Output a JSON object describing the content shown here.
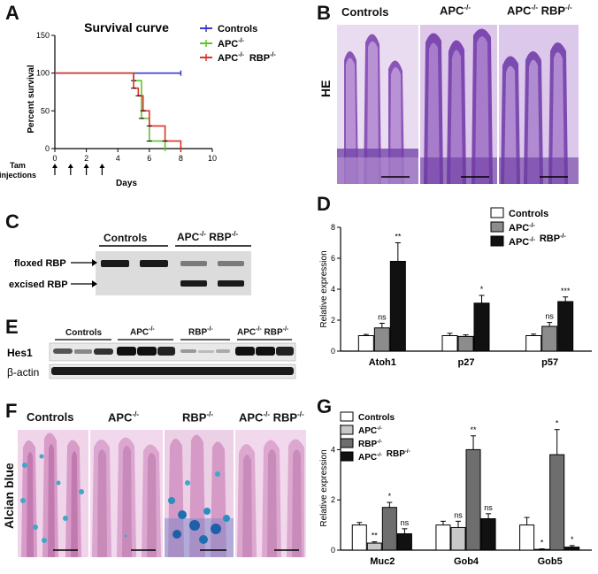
{
  "panels": {
    "A": "A",
    "B": "B",
    "C": "C",
    "D": "D",
    "E": "E",
    "F": "F",
    "G": "G"
  },
  "panelA": {
    "title": "Survival curve",
    "ylabel": "Percent survival",
    "xlabel": "Days",
    "tam_label_1": "Tam",
    "tam_label_2": "injections",
    "legend": {
      "controls": "Controls",
      "apc": "APC",
      "apc_sup": "-/-",
      "apcrbp_apc": "APC",
      "apcrbp_sup1": "-/-",
      "apcrbp_rbp": "RBP",
      "apcrbp_sup2": "-/-"
    },
    "colors": {
      "controls": "#3b3bc8",
      "apc": "#5cc42c",
      "apcrbp": "#e0302a"
    }
  },
  "panelB": {
    "controls": "Controls",
    "apc": "APC",
    "apc_sup": "-/-",
    "apcrbp_apc": "APC",
    "apcrbp_sup1": "-/-",
    "apcrbp_rbp": "RBP",
    "apcrbp_sup2": "-/-",
    "side": "HE"
  },
  "panelC": {
    "controls": "Controls",
    "apc": "APC",
    "apc_sup": "-/-",
    "rbp": "RBP",
    "rbp_sup": "-/-",
    "floxed": "floxed RBP",
    "excised": "excised RBP"
  },
  "panelE": {
    "controls": "Controls",
    "apc": "APC",
    "apc_sup": "-/-",
    "rbp": "RBP",
    "rbp_sup": "-/-",
    "apcrbp_apc": "APC",
    "apcrbp_sup1": "-/-",
    "apcrbp_rbp": "RBP",
    "apcrbp_sup2": "-/-",
    "hes1": "Hes1",
    "actin": "β-actin"
  },
  "panelF": {
    "controls": "Controls",
    "apc": "APC",
    "apc_sup": "-/-",
    "rbp": "RBP",
    "rbp_sup": "-/-",
    "apcrbp_apc": "APC",
    "apcrbp_sup1": "-/-",
    "apcrbp_rbp": "RBP",
    "apcrbp_sup2": "-/-",
    "side": "Alcian blue"
  },
  "chart_data": [
    {
      "id": "A",
      "type": "line",
      "title": "Survival curve",
      "xlabel": "Days",
      "ylabel": "Percent survival",
      "xlim": [
        0,
        10
      ],
      "ylim": [
        0,
        150
      ],
      "xticks": [
        0,
        2,
        4,
        6,
        8,
        10
      ],
      "yticks": [
        0,
        50,
        100,
        150
      ],
      "series": [
        {
          "name": "Controls",
          "x": [
            0,
            8
          ],
          "y": [
            100,
            100
          ]
        },
        {
          "name": "APC-/-",
          "x": [
            0,
            5,
            5,
            5.5,
            5.5,
            6,
            6,
            7,
            7
          ],
          "y": [
            100,
            100,
            90,
            90,
            40,
            40,
            10,
            10,
            0
          ]
        },
        {
          "name": "APC-/- RBP-/-",
          "x": [
            0,
            5,
            5,
            5.3,
            5.3,
            5.6,
            5.6,
            6,
            6,
            7,
            7,
            8,
            8
          ],
          "y": [
            100,
            100,
            80,
            80,
            70,
            70,
            50,
            50,
            30,
            30,
            10,
            10,
            0
          ]
        }
      ],
      "injection_days": [
        0,
        1,
        2,
        3
      ]
    },
    {
      "id": "D",
      "type": "bar",
      "ylabel": "Relative expression",
      "ylim": [
        0,
        8
      ],
      "yticks": [
        0,
        2,
        4,
        6,
        8
      ],
      "categories": [
        "Atoh1",
        "p27",
        "p57"
      ],
      "series": [
        {
          "name": "Controls",
          "color": "#ffffff",
          "values": [
            1.0,
            1.0,
            1.0
          ],
          "errors": [
            0.08,
            0.15,
            0.1
          ],
          "sig": [
            "",
            "",
            ""
          ]
        },
        {
          "name": "APC-/-",
          "color": "#8c8c8c",
          "values": [
            1.5,
            0.95,
            1.6
          ],
          "errors": [
            0.3,
            0.1,
            0.25
          ],
          "sig": [
            "ns",
            "",
            "ns"
          ]
        },
        {
          "name": "APC-/- RBP-/-",
          "color": "#111111",
          "values": [
            5.8,
            3.1,
            3.2
          ],
          "errors": [
            1.2,
            0.5,
            0.3
          ],
          "sig": [
            "**",
            "*",
            "***"
          ]
        }
      ]
    },
    {
      "id": "G",
      "type": "bar",
      "ylabel": "Relative expression",
      "ylim": [
        0,
        5
      ],
      "yticks": [
        0,
        2,
        4
      ],
      "categories": [
        "Muc2",
        "Gob4",
        "Gob5"
      ],
      "series": [
        {
          "name": "Controls",
          "color": "#ffffff",
          "values": [
            1.0,
            1.0,
            1.0
          ],
          "errors": [
            0.1,
            0.15,
            0.3
          ],
          "sig": [
            "",
            "",
            ""
          ]
        },
        {
          "name": "APC-/-",
          "color": "#c8c8c8",
          "values": [
            0.28,
            0.9,
            0.03
          ],
          "errors": [
            0.05,
            0.25,
            0.02
          ],
          "sig": [
            "**",
            "ns",
            "*"
          ]
        },
        {
          "name": "RBP-/-",
          "color": "#6e6e6e",
          "values": [
            1.7,
            4.0,
            3.8
          ],
          "errors": [
            0.2,
            0.55,
            1.0
          ],
          "sig": [
            "*",
            "**",
            "*"
          ]
        },
        {
          "name": "APC-/- RBP-/-",
          "color": "#111111",
          "values": [
            0.65,
            1.25,
            0.12
          ],
          "errors": [
            0.2,
            0.2,
            0.06
          ],
          "sig": [
            "ns",
            "ns",
            "*"
          ]
        }
      ]
    }
  ]
}
